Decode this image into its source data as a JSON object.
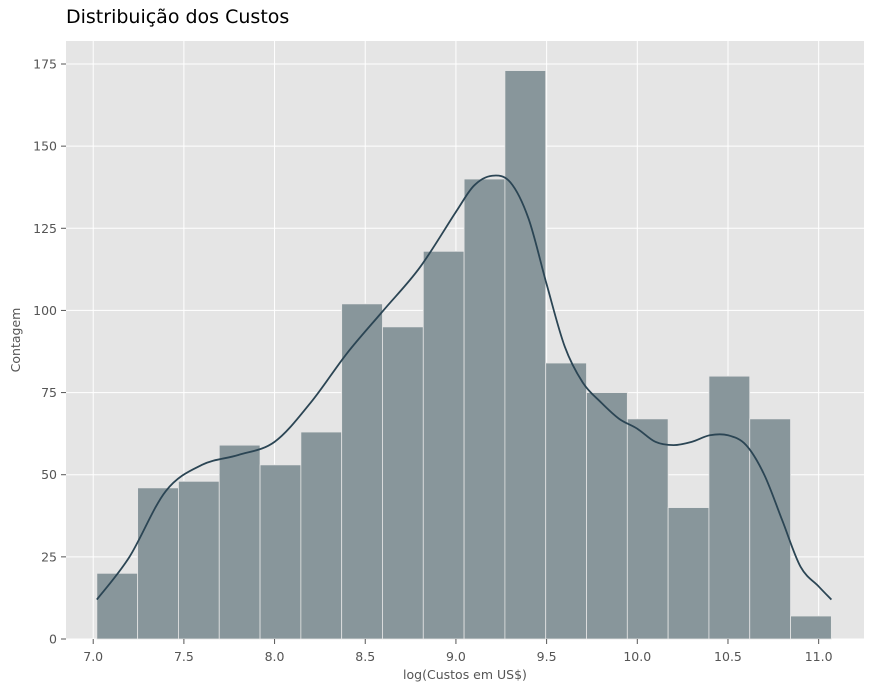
{
  "chart_data": {
    "type": "bar",
    "title": "Distribuição dos Custos",
    "xlabel": "log(Custos em US$)",
    "ylabel": "Contagem",
    "xlim": [
      6.85,
      11.25
    ],
    "ylim": [
      0,
      182
    ],
    "x_ticks": [
      "7.0",
      "7.5",
      "8.0",
      "8.5",
      "9.0",
      "9.5",
      "10.0",
      "10.5",
      "11.0"
    ],
    "y_ticks": [
      "0",
      "25",
      "50",
      "75",
      "100",
      "125",
      "150",
      "175"
    ],
    "grid": true,
    "bins": [
      {
        "x0": 7.02,
        "x1": 7.245,
        "count": 20
      },
      {
        "x0": 7.245,
        "x1": 7.47,
        "count": 46
      },
      {
        "x0": 7.47,
        "x1": 7.695,
        "count": 48
      },
      {
        "x0": 7.695,
        "x1": 7.92,
        "count": 59
      },
      {
        "x0": 7.92,
        "x1": 8.145,
        "count": 53
      },
      {
        "x0": 8.145,
        "x1": 8.37,
        "count": 63
      },
      {
        "x0": 8.37,
        "x1": 8.595,
        "count": 102
      },
      {
        "x0": 8.595,
        "x1": 8.82,
        "count": 95
      },
      {
        "x0": 8.82,
        "x1": 9.045,
        "count": 118
      },
      {
        "x0": 9.045,
        "x1": 9.27,
        "count": 140
      },
      {
        "x0": 9.27,
        "x1": 9.495,
        "count": 173
      },
      {
        "x0": 9.495,
        "x1": 9.72,
        "count": 84
      },
      {
        "x0": 9.72,
        "x1": 9.945,
        "count": 75
      },
      {
        "x0": 9.945,
        "x1": 10.17,
        "count": 67
      },
      {
        "x0": 10.17,
        "x1": 10.395,
        "count": 40
      },
      {
        "x0": 10.395,
        "x1": 10.62,
        "count": 80
      },
      {
        "x0": 10.62,
        "x1": 10.845,
        "count": 67
      },
      {
        "x0": 10.845,
        "x1": 11.07,
        "count": 7
      }
    ],
    "kde": {
      "x": [
        7.02,
        7.2,
        7.4,
        7.6,
        7.8,
        8.0,
        8.2,
        8.4,
        8.6,
        8.8,
        9.0,
        9.1,
        9.2,
        9.3,
        9.4,
        9.5,
        9.6,
        9.7,
        9.8,
        9.9,
        10.0,
        10.1,
        10.2,
        10.3,
        10.4,
        10.5,
        10.6,
        10.7,
        10.8,
        10.9,
        11.0,
        11.07
      ],
      "y": [
        12,
        25,
        45,
        53,
        56,
        60,
        72,
        87,
        100,
        113,
        130,
        138,
        141,
        139,
        128,
        108,
        89,
        78,
        72,
        67,
        64,
        60,
        59,
        60,
        62,
        62,
        59,
        50,
        36,
        22,
        16,
        12
      ]
    },
    "colors": {
      "bar_fill": "#88969b",
      "bar_edge": "#e5e5e5",
      "kde_line": "#2b4554",
      "plot_bg": "#e5e5e5",
      "grid": "#ffffff"
    }
  }
}
